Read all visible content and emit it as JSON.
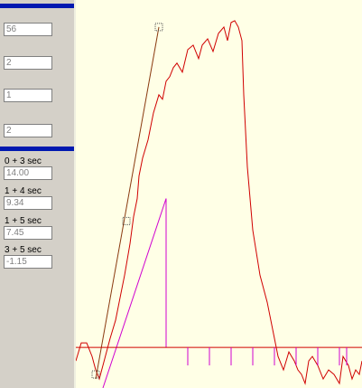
{
  "sidebar": {
    "inputs": [
      "56",
      "2",
      "1",
      "2"
    ],
    "metrics": [
      {
        "label": "0 + 3 sec",
        "value": "14.00"
      },
      {
        "label": "1 + 4 sec",
        "value": "9.34"
      },
      {
        "label": "1 + 5 sec",
        "value": "7.45"
      },
      {
        "label": "3 + 5 sec",
        "value": "-1.15"
      }
    ]
  },
  "chart_data": {
    "type": "line",
    "title": "",
    "xlabel": "",
    "ylabel": "",
    "xlim": [
      0,
      317
    ],
    "ylim": [
      -45,
      385
    ],
    "series": [
      {
        "color": "#d00000",
        "x": [
          0,
          6,
          12,
          18,
          22,
          26,
          30,
          38,
          44,
          50,
          54,
          60,
          64,
          68,
          70,
          74,
          80,
          86,
          92,
          96,
          100,
          104,
          108,
          112,
          118,
          124,
          130,
          136,
          140,
          146,
          152,
          158,
          164,
          168,
          172,
          176,
          180,
          184,
          186,
          190,
          196,
          204,
          212,
          220,
          224,
          230,
          236,
          242,
          246,
          250,
          254,
          258,
          262,
          268,
          274,
          280,
          286,
          292,
          296,
          302,
          306,
          310,
          314,
          317
        ],
        "y": [
          -15,
          5,
          5,
          -10,
          -25,
          -35,
          -20,
          10,
          30,
          60,
          80,
          115,
          145,
          165,
          190,
          210,
          230,
          260,
          280,
          275,
          295,
          300,
          310,
          315,
          305,
          330,
          335,
          320,
          335,
          342,
          328,
          348,
          355,
          340,
          360,
          362,
          355,
          340,
          280,
          200,
          130,
          80,
          50,
          10,
          -10,
          -25,
          -5,
          -15,
          -25,
          -30,
          -40,
          -15,
          -10,
          -20,
          -35,
          -25,
          -30,
          -40,
          -10,
          -20,
          -35,
          -25,
          -30,
          -15
        ]
      },
      {
        "color": "#8a3a10",
        "x": [
          22,
          92
        ],
        "y": [
          -35,
          355
        ]
      },
      {
        "color": "#d000d0",
        "x": [
          30,
          100,
          100
        ],
        "y": [
          -45,
          165,
          0
        ]
      },
      {
        "color": "#d00000",
        "x": [
          0,
          317
        ],
        "y": [
          0,
          0
        ]
      }
    ],
    "spikes": {
      "color": "#d000d0",
      "x": [
        124,
        148,
        172,
        196,
        220,
        244,
        268,
        292,
        300
      ],
      "depth": [
        -20,
        -20,
        -20,
        -20,
        -20,
        -20,
        -20,
        -20,
        -20
      ]
    },
    "markers": [
      {
        "x": 22,
        "y": -30
      },
      {
        "x": 56,
        "y": 140
      },
      {
        "x": 92,
        "y": 355
      }
    ]
  }
}
